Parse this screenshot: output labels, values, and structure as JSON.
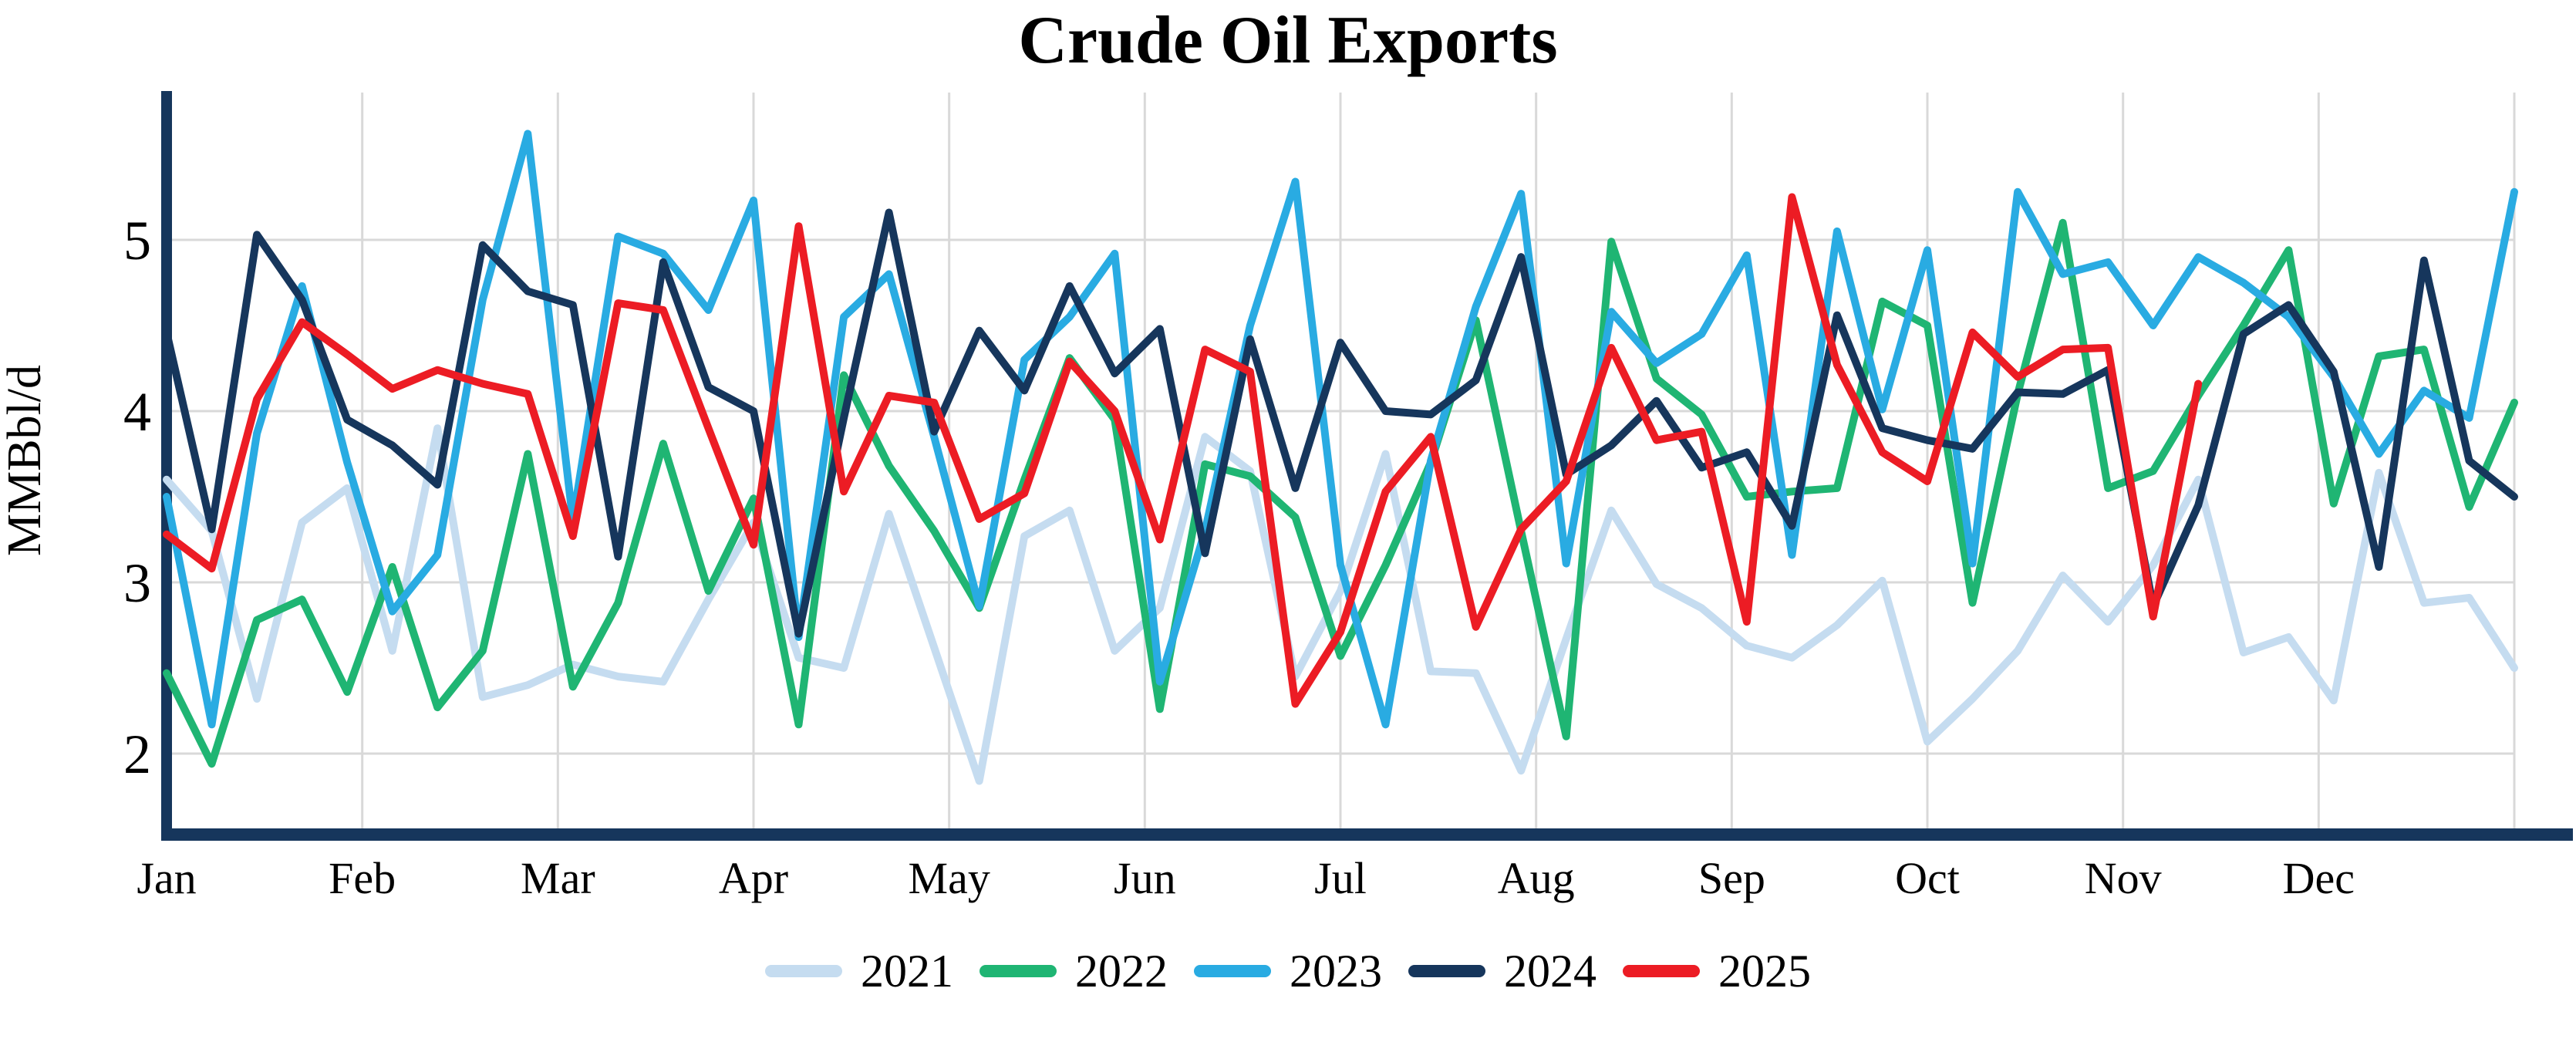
{
  "title": "Crude Oil Exports",
  "chart_data": {
    "type": "line",
    "title": "Crude Oil Exports",
    "xlabel": "",
    "ylabel": "MMBbl/d",
    "x_tick_labels": [
      "Jan",
      "Feb",
      "Mar",
      "Apr",
      "May",
      "Jun",
      "Jul",
      "Aug",
      "Sep",
      "Oct",
      "Nov",
      "Dec"
    ],
    "x_unit": "weekly (53 points per year)",
    "y_ticks": [
      2,
      3,
      4,
      5
    ],
    "ylim": [
      1.55,
      5.86
    ],
    "grid": true,
    "legend_position": "bottom",
    "background_color": "#ffffff",
    "grid_color": "#d9d9d9",
    "axis_color": "#16365c",
    "text_color": "#000000",
    "series": [
      {
        "name": "2021",
        "color": "#c5dcf0",
        "values": [
          3.6,
          3.3,
          2.32,
          3.35,
          3.55,
          2.6,
          3.9,
          2.33,
          2.4,
          2.52,
          2.45,
          2.42,
          2.9,
          3.35,
          2.56,
          2.5,
          3.4,
          2.62,
          1.84,
          3.27,
          3.42,
          2.6,
          2.85,
          3.85,
          3.65,
          2.45,
          2.95,
          3.75,
          2.48,
          2.47,
          1.9,
          2.67,
          3.42,
          2.99,
          2.85,
          2.63,
          2.56,
          2.75,
          3.01,
          2.07,
          2.32,
          2.6,
          3.04,
          2.77,
          3.1,
          3.6,
          2.59,
          2.68,
          2.31,
          3.64,
          2.88,
          2.91,
          2.5
        ]
      },
      {
        "name": "2022",
        "color": "#1fb573",
        "values": [
          2.47,
          1.94,
          2.78,
          2.9,
          2.36,
          3.09,
          2.27,
          2.6,
          3.75,
          2.39,
          2.88,
          3.81,
          2.95,
          3.49,
          2.17,
          4.21,
          3.68,
          3.3,
          2.85,
          3.6,
          4.31,
          3.95,
          2.26,
          3.69,
          3.62,
          3.38,
          2.57,
          3.1,
          3.7,
          4.53,
          3.3,
          2.1,
          4.99,
          4.19,
          3.98,
          3.5,
          3.53,
          3.55,
          4.64,
          4.5,
          2.88,
          4.1,
          5.1,
          3.55,
          3.65,
          4.09,
          4.5,
          4.94,
          3.46,
          4.32,
          4.36,
          3.44,
          4.05
        ]
      },
      {
        "name": "2023",
        "color": "#29abe2",
        "values": [
          3.5,
          2.17,
          3.87,
          4.73,
          3.7,
          2.83,
          3.16,
          4.65,
          5.62,
          3.36,
          5.02,
          4.92,
          4.59,
          5.23,
          2.68,
          4.55,
          4.8,
          3.85,
          2.86,
          4.3,
          4.55,
          4.92,
          2.42,
          3.3,
          4.5,
          5.34,
          3.1,
          2.17,
          3.71,
          4.61,
          5.27,
          3.11,
          4.58,
          4.28,
          4.45,
          4.91,
          3.16,
          5.05,
          4.01,
          4.94,
          3.11,
          5.28,
          4.8,
          4.87,
          4.5,
          4.9,
          4.75,
          4.55,
          4.2,
          3.75,
          4.12,
          3.96,
          5.28
        ]
      },
      {
        "name": "2024",
        "color": "#16365c",
        "values": [
          4.46,
          3.31,
          5.03,
          4.65,
          3.95,
          3.8,
          3.57,
          4.97,
          4.7,
          4.62,
          3.15,
          4.87,
          4.14,
          4.0,
          2.7,
          3.96,
          5.16,
          3.88,
          4.47,
          4.12,
          4.73,
          4.22,
          4.48,
          3.17,
          4.42,
          3.55,
          4.4,
          4.0,
          3.98,
          4.18,
          4.9,
          3.63,
          3.8,
          4.06,
          3.67,
          3.76,
          3.33,
          4.56,
          3.9,
          3.83,
          3.78,
          4.11,
          4.1,
          4.24,
          2.86,
          3.45,
          4.45,
          4.62,
          4.23,
          3.09,
          4.88,
          3.71,
          3.5
        ]
      },
      {
        "name": "2025",
        "color": "#ec1c24",
        "values": [
          3.28,
          3.08,
          4.07,
          4.52,
          4.33,
          4.13,
          4.24,
          4.16,
          4.1,
          3.27,
          4.63,
          4.59,
          3.9,
          3.22,
          5.08,
          3.53,
          4.09,
          4.05,
          3.37,
          3.52,
          4.29,
          4.0,
          3.25,
          4.36,
          4.23,
          2.29,
          2.71,
          3.53,
          3.85,
          2.74,
          3.31,
          3.59,
          4.37,
          3.83,
          3.88,
          2.77,
          5.25,
          4.27,
          3.76,
          3.59,
          4.46,
          4.2,
          4.36,
          4.37,
          2.8,
          4.16
        ]
      }
    ]
  }
}
